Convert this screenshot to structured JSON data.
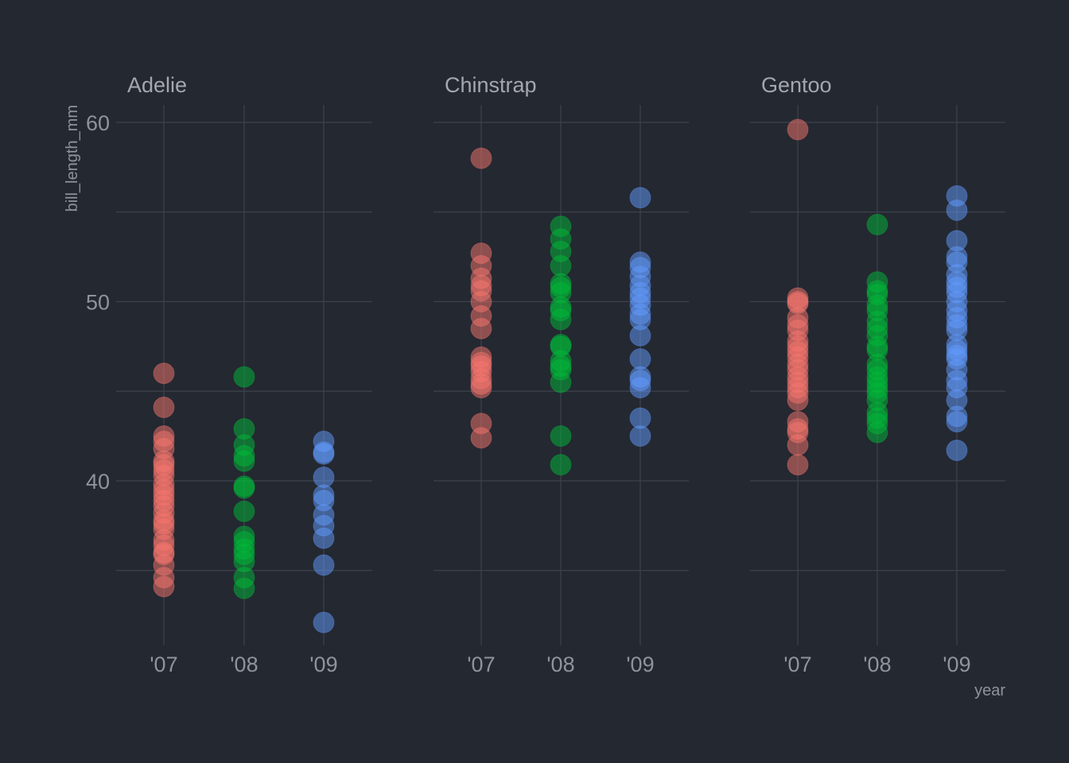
{
  "chart_data": {
    "type": "scatter",
    "xlabel": "year",
    "ylabel": "bill_length_mm",
    "x_categories": [
      "'07",
      "'08",
      "'09"
    ],
    "y_ticks": [
      40,
      50,
      60
    ],
    "y_minor": [
      35,
      45,
      55
    ],
    "ylim": [
      31.5,
      61.0
    ],
    "grid": true,
    "legend": "none",
    "series_colors": {
      "'07": "#f8766d",
      "'08": "#00ba38",
      "'09": "#619cff"
    },
    "facets": [
      {
        "name": "Adelie",
        "points": {
          "'07": [
            46.0,
            44.1,
            42.5,
            42.2,
            41.8,
            41.1,
            40.9,
            40.6,
            40.3,
            39.8,
            39.5,
            39.2,
            38.9,
            38.6,
            38.2,
            37.8,
            37.6,
            37.3,
            36.7,
            36.4,
            36.0,
            35.9,
            35.3,
            34.6,
            34.1
          ],
          "'08": [
            45.8,
            42.9,
            42.0,
            41.4,
            41.1,
            39.7,
            39.6,
            38.3,
            36.9,
            36.6,
            36.2,
            35.9,
            35.5,
            34.6,
            34.0
          ],
          "'09": [
            42.2,
            41.6,
            41.5,
            40.2,
            39.2,
            38.9,
            38.1,
            37.5,
            36.8,
            35.3,
            32.1
          ]
        }
      },
      {
        "name": "Chinstrap",
        "points": {
          "'07": [
            58.0,
            52.7,
            52.0,
            51.3,
            50.9,
            50.6,
            50.0,
            49.2,
            48.5,
            46.9,
            46.6,
            46.4,
            46.1,
            45.7,
            45.4,
            45.2,
            43.2,
            42.4
          ],
          "'08": [
            54.2,
            53.5,
            52.8,
            52.0,
            51.0,
            50.8,
            50.5,
            49.7,
            49.5,
            49.0,
            47.6,
            47.5,
            46.7,
            46.4,
            46.2,
            45.5,
            42.5,
            40.9
          ],
          "'09": [
            55.8,
            52.2,
            51.9,
            51.4,
            50.9,
            50.5,
            50.2,
            49.8,
            49.3,
            49.0,
            48.1,
            46.8,
            45.8,
            45.6,
            45.2,
            43.5,
            42.5
          ]
        }
      },
      {
        "name": "Gentoo",
        "points": {
          "'07": [
            59.6,
            50.2,
            50.0,
            49.9,
            49.1,
            48.7,
            48.4,
            47.8,
            47.5,
            47.2,
            46.9,
            46.5,
            46.2,
            45.8,
            45.5,
            45.2,
            44.9,
            44.5,
            43.3,
            42.9,
            42.7,
            42.0,
            40.9
          ],
          "'08": [
            54.3,
            51.1,
            50.6,
            50.4,
            49.8,
            49.5,
            48.9,
            48.5,
            48.1,
            47.5,
            47.3,
            46.5,
            46.2,
            45.8,
            45.5,
            45.2,
            44.9,
            44.5,
            43.8,
            43.5,
            43.2,
            42.7
          ],
          "'09": [
            55.9,
            55.1,
            53.4,
            52.5,
            52.2,
            51.5,
            51.1,
            50.8,
            50.5,
            50.0,
            49.5,
            49.1,
            48.7,
            48.4,
            47.6,
            47.3,
            47.0,
            46.8,
            46.2,
            45.6,
            45.2,
            44.5,
            43.6,
            43.3,
            41.7
          ]
        }
      }
    ]
  }
}
